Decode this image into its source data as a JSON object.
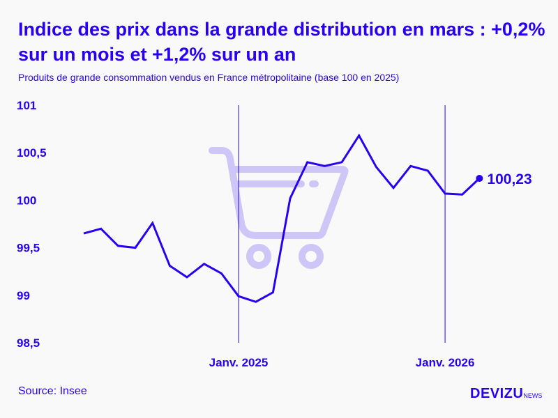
{
  "title": "Indice des prix dans la grande distribution en mars : +0,2% sur un mois et +1,2% sur un an",
  "subtitle": "Produits de grande consommation vendus en France métropolitaine (base 100 en 2025)",
  "source": "Source: Insee",
  "logo": {
    "main": "DEVIZU",
    "suffix": "NEWS"
  },
  "colors": {
    "line": "#2a00f0",
    "cart_icon": "#cdc6f7",
    "background": "#f9f9f9"
  },
  "decor_icon": "shopping-cart-icon",
  "chart_data": {
    "type": "line",
    "title": "Indice des prix dans la grande distribution en mars : +0,2% sur un mois et +1,2% sur un an",
    "xlabel": "",
    "ylabel": "",
    "ylim": [
      98.5,
      101
    ],
    "yticks": [
      "98,5",
      "99",
      "99,5",
      "100",
      "100,5",
      "101"
    ],
    "ytick_values": [
      98.5,
      99,
      99.5,
      100,
      100.5,
      101
    ],
    "xticks": [
      {
        "label": "Janv. 2025",
        "x": "2025-01"
      },
      {
        "label": "Janv. 2026",
        "x": "2026-01"
      }
    ],
    "grid": "vertical lines at January ticks only",
    "x": [
      "2024-04",
      "2024-05",
      "2024-06",
      "2024-07",
      "2024-08",
      "2024-09",
      "2024-10",
      "2024-11",
      "2024-12",
      "2025-01",
      "2025-02",
      "2025-03",
      "2025-04",
      "2025-05",
      "2025-06",
      "2025-07",
      "2025-08",
      "2025-09",
      "2025-10",
      "2025-11",
      "2025-12",
      "2026-01",
      "2026-02",
      "2026-03"
    ],
    "series": [
      {
        "values": [
          99.65,
          99.7,
          99.52,
          99.5,
          99.76,
          99.31,
          99.19,
          99.33,
          99.23,
          98.99,
          98.93,
          99.03,
          100.02,
          100.4,
          100.36,
          100.4,
          100.68,
          100.35,
          100.13,
          100.36,
          100.31,
          100.07,
          100.06,
          100.23
        ]
      }
    ],
    "annotations": [
      {
        "x": "2026-03",
        "label": "100,23"
      }
    ]
  }
}
